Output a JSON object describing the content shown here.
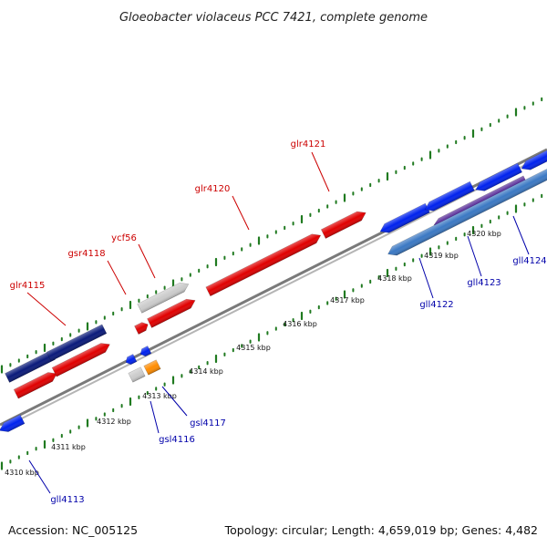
{
  "header": {
    "title": "Gloeobacter violaceus PCC 7421, complete genome"
  },
  "footer": {
    "accession": "Accession: NC_005125",
    "summary": "Topology: circular; Length: 4,659,019 bp; Genes: 4,482"
  },
  "colors": {
    "forward_gene_label": "#cc0000",
    "reverse_gene_label": "#0000aa",
    "backbone": "#8a8a8a",
    "tick": "#207a20"
  },
  "scale_labels": [
    "4310 kbp",
    "4311 kbp",
    "4312 kbp",
    "4313 kbp",
    "4314 kbp",
    "4315 kbp",
    "4316 kbp",
    "4317 kbp",
    "4318 kbp",
    "4319 kbp",
    "4320 kbp"
  ],
  "gene_labels": [
    {
      "text": "glr4115",
      "strand": "forward"
    },
    {
      "text": "gsr4118",
      "strand": "forward"
    },
    {
      "text": "ycf56",
      "strand": "forward"
    },
    {
      "text": "glr4120",
      "strand": "forward"
    },
    {
      "text": "glr4121",
      "strand": "forward"
    },
    {
      "text": "gll4113",
      "strand": "reverse"
    },
    {
      "text": "gsl4116",
      "strand": "reverse"
    },
    {
      "text": "gsl4117",
      "strand": "reverse"
    },
    {
      "text": "gll4122",
      "strand": "reverse"
    },
    {
      "text": "gll4123",
      "strand": "reverse"
    },
    {
      "text": "gll4124",
      "strand": "reverse"
    }
  ]
}
